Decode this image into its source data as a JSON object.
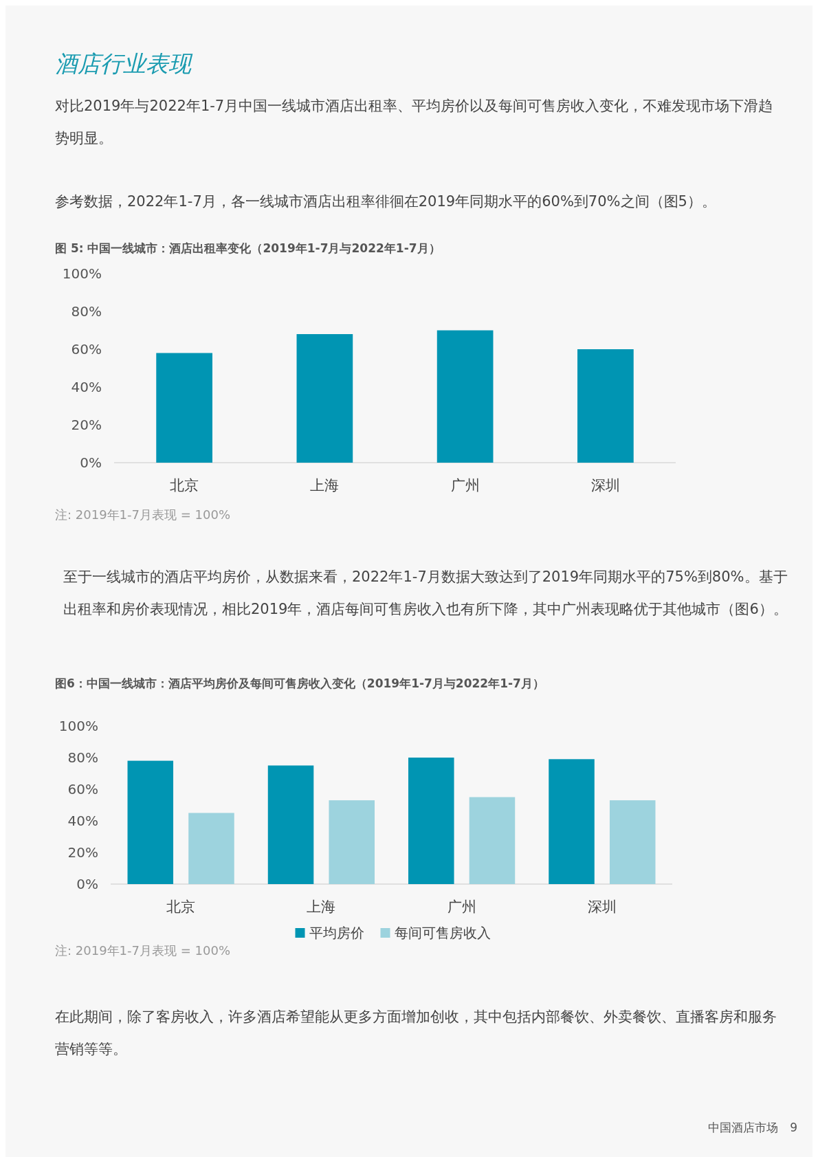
{
  "chart_data": [
    {
      "type": "bar",
      "title": "图 5: 中国一线城市：酒店出租率变化（2019年1-7月与2022年1-7月）",
      "categories": [
        "北京",
        "上海",
        "广州",
        "深圳"
      ],
      "values": [
        58,
        68,
        70,
        60
      ],
      "color": "#0095b3",
      "ylim": [
        0,
        100
      ],
      "yticks": [
        {
          "value": 0,
          "label": "0%"
        },
        {
          "value": 20,
          "label": "20%"
        },
        {
          "value": 40,
          "label": "40%"
        },
        {
          "value": 60,
          "label": "60%"
        },
        {
          "value": 80,
          "label": "80%"
        },
        {
          "value": 100,
          "label": "100%"
        }
      ],
      "grid": false,
      "legend": false,
      "annotations": [
        "酒店行业表现",
        "对比2019年与2022年1-7月中国一线城市酒店出租率、平均房价以及每间可售房收入变化，不难发现市场下滑趋势明显。",
        "参考数据，2022年1-7月，各一线城市酒店出租率徘徊在2019年同期水平的60%到70%之间（图5）。",
        "注: 2019年1-7月表现 = 100%"
      ]
    },
    {
      "type": "bar",
      "title": "图6：中国一线城市：酒店平均房价及每间可售房收入变化（2019年1-7月与2022年1-7月）",
      "categories": [
        "北京",
        "上海",
        "广州",
        "深圳"
      ],
      "series": [
        {
          "name": "平均房价",
          "color": "#0095b3",
          "values": [
            78,
            75,
            80,
            79
          ]
        },
        {
          "name": "每间可售房收入",
          "color": "#9dd3de",
          "values": [
            45,
            53,
            55,
            53
          ]
        }
      ],
      "ylim": [
        0,
        100
      ],
      "yticks": [
        {
          "value": 0,
          "label": "0%"
        },
        {
          "value": 20,
          "label": "20%"
        },
        {
          "value": 40,
          "label": "40%"
        },
        {
          "value": 60,
          "label": "60%"
        },
        {
          "value": 80,
          "label": "80%"
        },
        {
          "value": 100,
          "label": "100%"
        }
      ],
      "grid": false,
      "legend": "bottom",
      "annotations": [
        "至于一线城市的酒店平均房价，从数据来看，2022年1-7月数据大致达到了2019年同期水平的75%到80%。基于出租率和房价表现情况，相比2019年，酒店每间可售房收入也有所下降，其中广州表现略优于其他城市（图6）。",
        "注: 2019年1-7月表现 = 100%",
        "在此期间，除了客房收入，许多酒店希望能从更多方面增加创收，其中包括内部餐饮、外卖餐饮、直播客房和服务营销等等。",
        "中国酒店市场　9"
      ]
    }
  ]
}
